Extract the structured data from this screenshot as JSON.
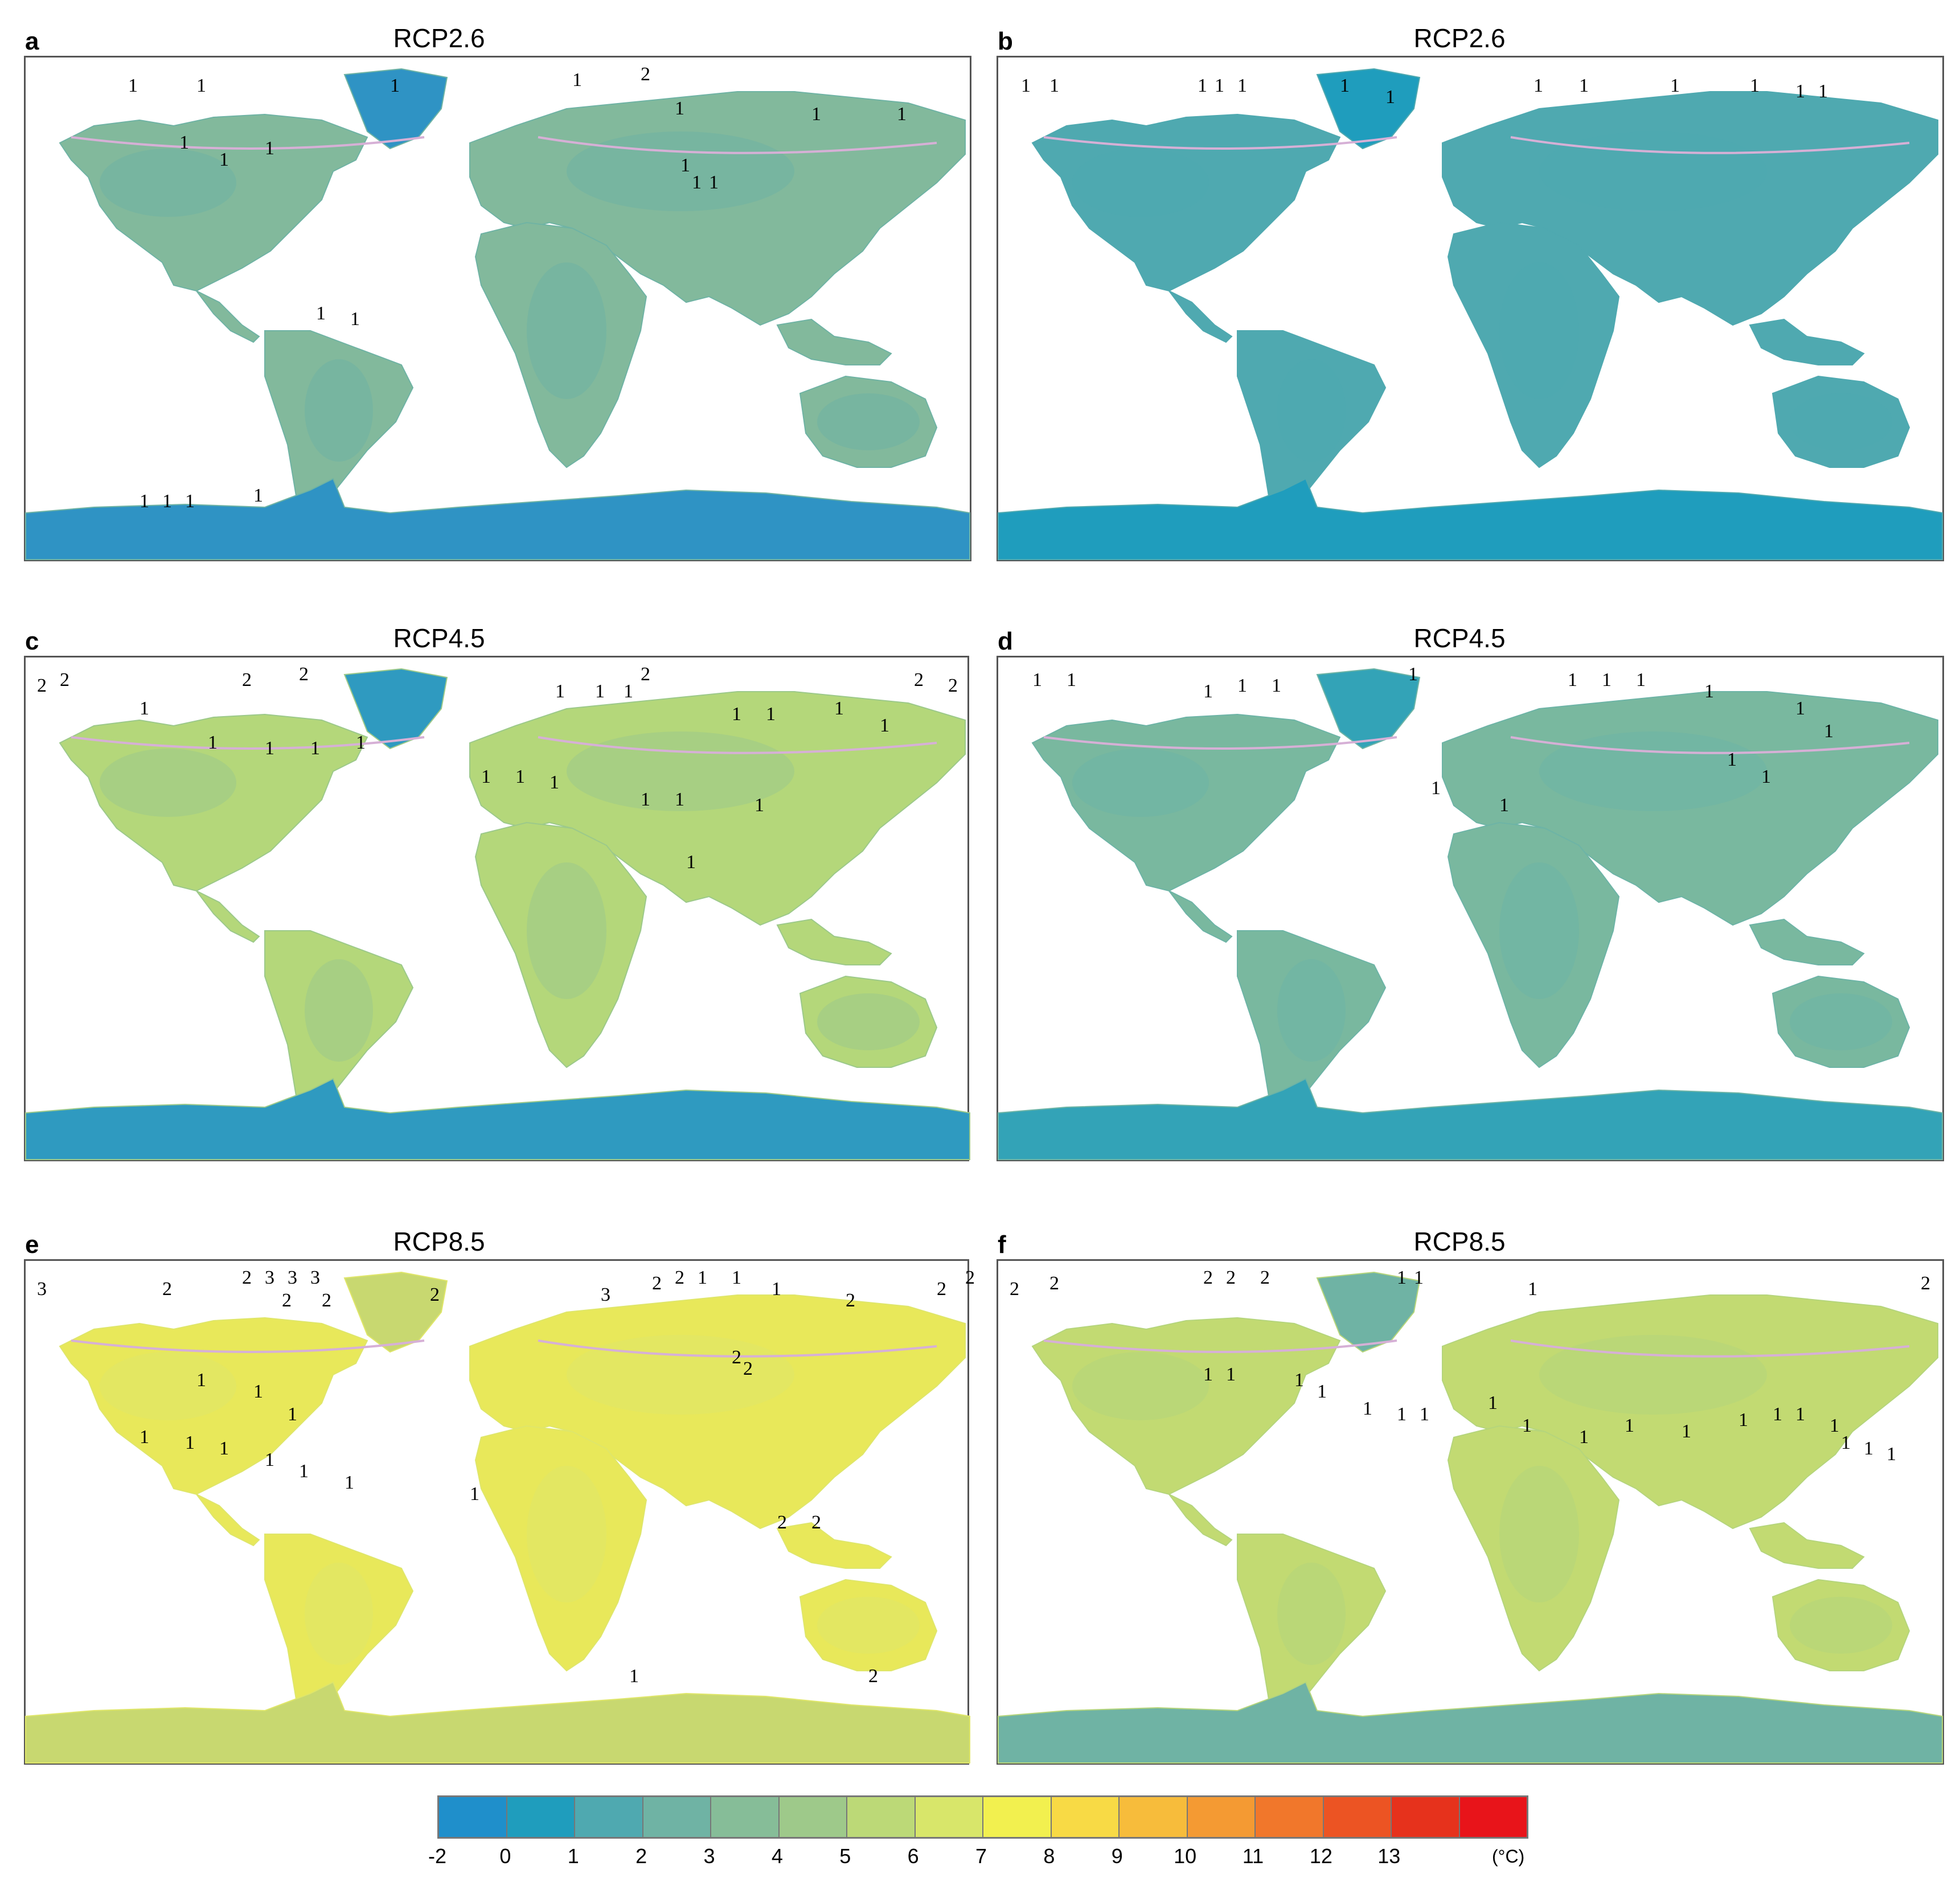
{
  "figure": {
    "panels": [
      {
        "letter": "a",
        "title": "RCP2.6",
        "base_color": "#6fb3a4",
        "land_color": "#82b99c",
        "polar_color": "#2f93c4",
        "contour_labels": [
          "1",
          "1",
          "1",
          "1",
          "2",
          "1",
          "1",
          "1",
          "1",
          "1",
          "1",
          "1",
          "1",
          "1",
          "1",
          "1",
          "1",
          "1",
          "1",
          "1"
        ]
      },
      {
        "letter": "b",
        "title": "RCP2.6",
        "base_color": "#4fa9b0",
        "land_color": "#4fa9b0",
        "polar_color": "#1f9dbd",
        "contour_labels": [
          "1",
          "1",
          "1",
          "1",
          "1",
          "1",
          "1",
          "1",
          "1",
          "1",
          "1",
          "1",
          "1"
        ]
      },
      {
        "letter": "c",
        "title": "RCP4.5",
        "base_color": "#9cc98a",
        "land_color": "#b4d77a",
        "polar_color": "#2f9ac0",
        "contour_labels": [
          "2",
          "2",
          "2",
          "2",
          "2",
          "2",
          "2",
          "1",
          "1",
          "1",
          "1",
          "1",
          "1",
          "1",
          "1",
          "1",
          "1",
          "1",
          "1",
          "1",
          "1",
          "1",
          "1",
          "1",
          "1",
          "1"
        ]
      },
      {
        "letter": "d",
        "title": "RCP4.5",
        "base_color": "#6db4a6",
        "land_color": "#79b89f",
        "polar_color": "#33a3b7",
        "contour_labels": [
          "1",
          "1",
          "1",
          "1",
          "1",
          "1",
          "1",
          "1",
          "1",
          "1",
          "1",
          "1",
          "1",
          "1",
          "1",
          "1"
        ]
      },
      {
        "letter": "e",
        "title": "RCP8.5",
        "base_color": "#dfe66a",
        "land_color": "#e8e85a",
        "polar_color": "#c8d870",
        "contour_labels": [
          "3",
          "2",
          "2",
          "3",
          "3",
          "3",
          "2",
          "2",
          "1",
          "1",
          "1",
          "2",
          "2",
          "2",
          "2",
          "2",
          "2",
          "3",
          "2",
          "2",
          "1",
          "1",
          "1",
          "1",
          "1",
          "1",
          "1",
          "1",
          "1",
          "1",
          "2",
          "2",
          "1",
          "2"
        ]
      },
      {
        "letter": "f",
        "title": "RCP8.5",
        "base_color": "#b5d57c",
        "land_color": "#c2da72",
        "polar_color": "#6fb3a4",
        "contour_labels": [
          "2",
          "2",
          "2",
          "2",
          "2",
          "1",
          "1",
          "1",
          "2",
          "1",
          "1",
          "1",
          "1",
          "1",
          "1",
          "1",
          "1",
          "1",
          "1",
          "1",
          "1",
          "1",
          "1",
          "1",
          "1",
          "1",
          "1",
          "1"
        ]
      }
    ],
    "colorbar": {
      "ticks": [
        "-2",
        "0",
        "1",
        "2",
        "3",
        "4",
        "5",
        "6",
        "7",
        "8",
        "9",
        "10",
        "11",
        "12",
        "13"
      ],
      "unit": "(°C)",
      "colors": [
        "#1f8fcb",
        "#1f9dbd",
        "#4fa9b0",
        "#6fb3a4",
        "#86bd98",
        "#9ec98a",
        "#bcd977",
        "#d8e66a",
        "#f2f04f",
        "#f8da45",
        "#f7bc3b",
        "#f49a33",
        "#f1772b",
        "#ec5423",
        "#e6321c",
        "#e8141a"
      ]
    }
  }
}
